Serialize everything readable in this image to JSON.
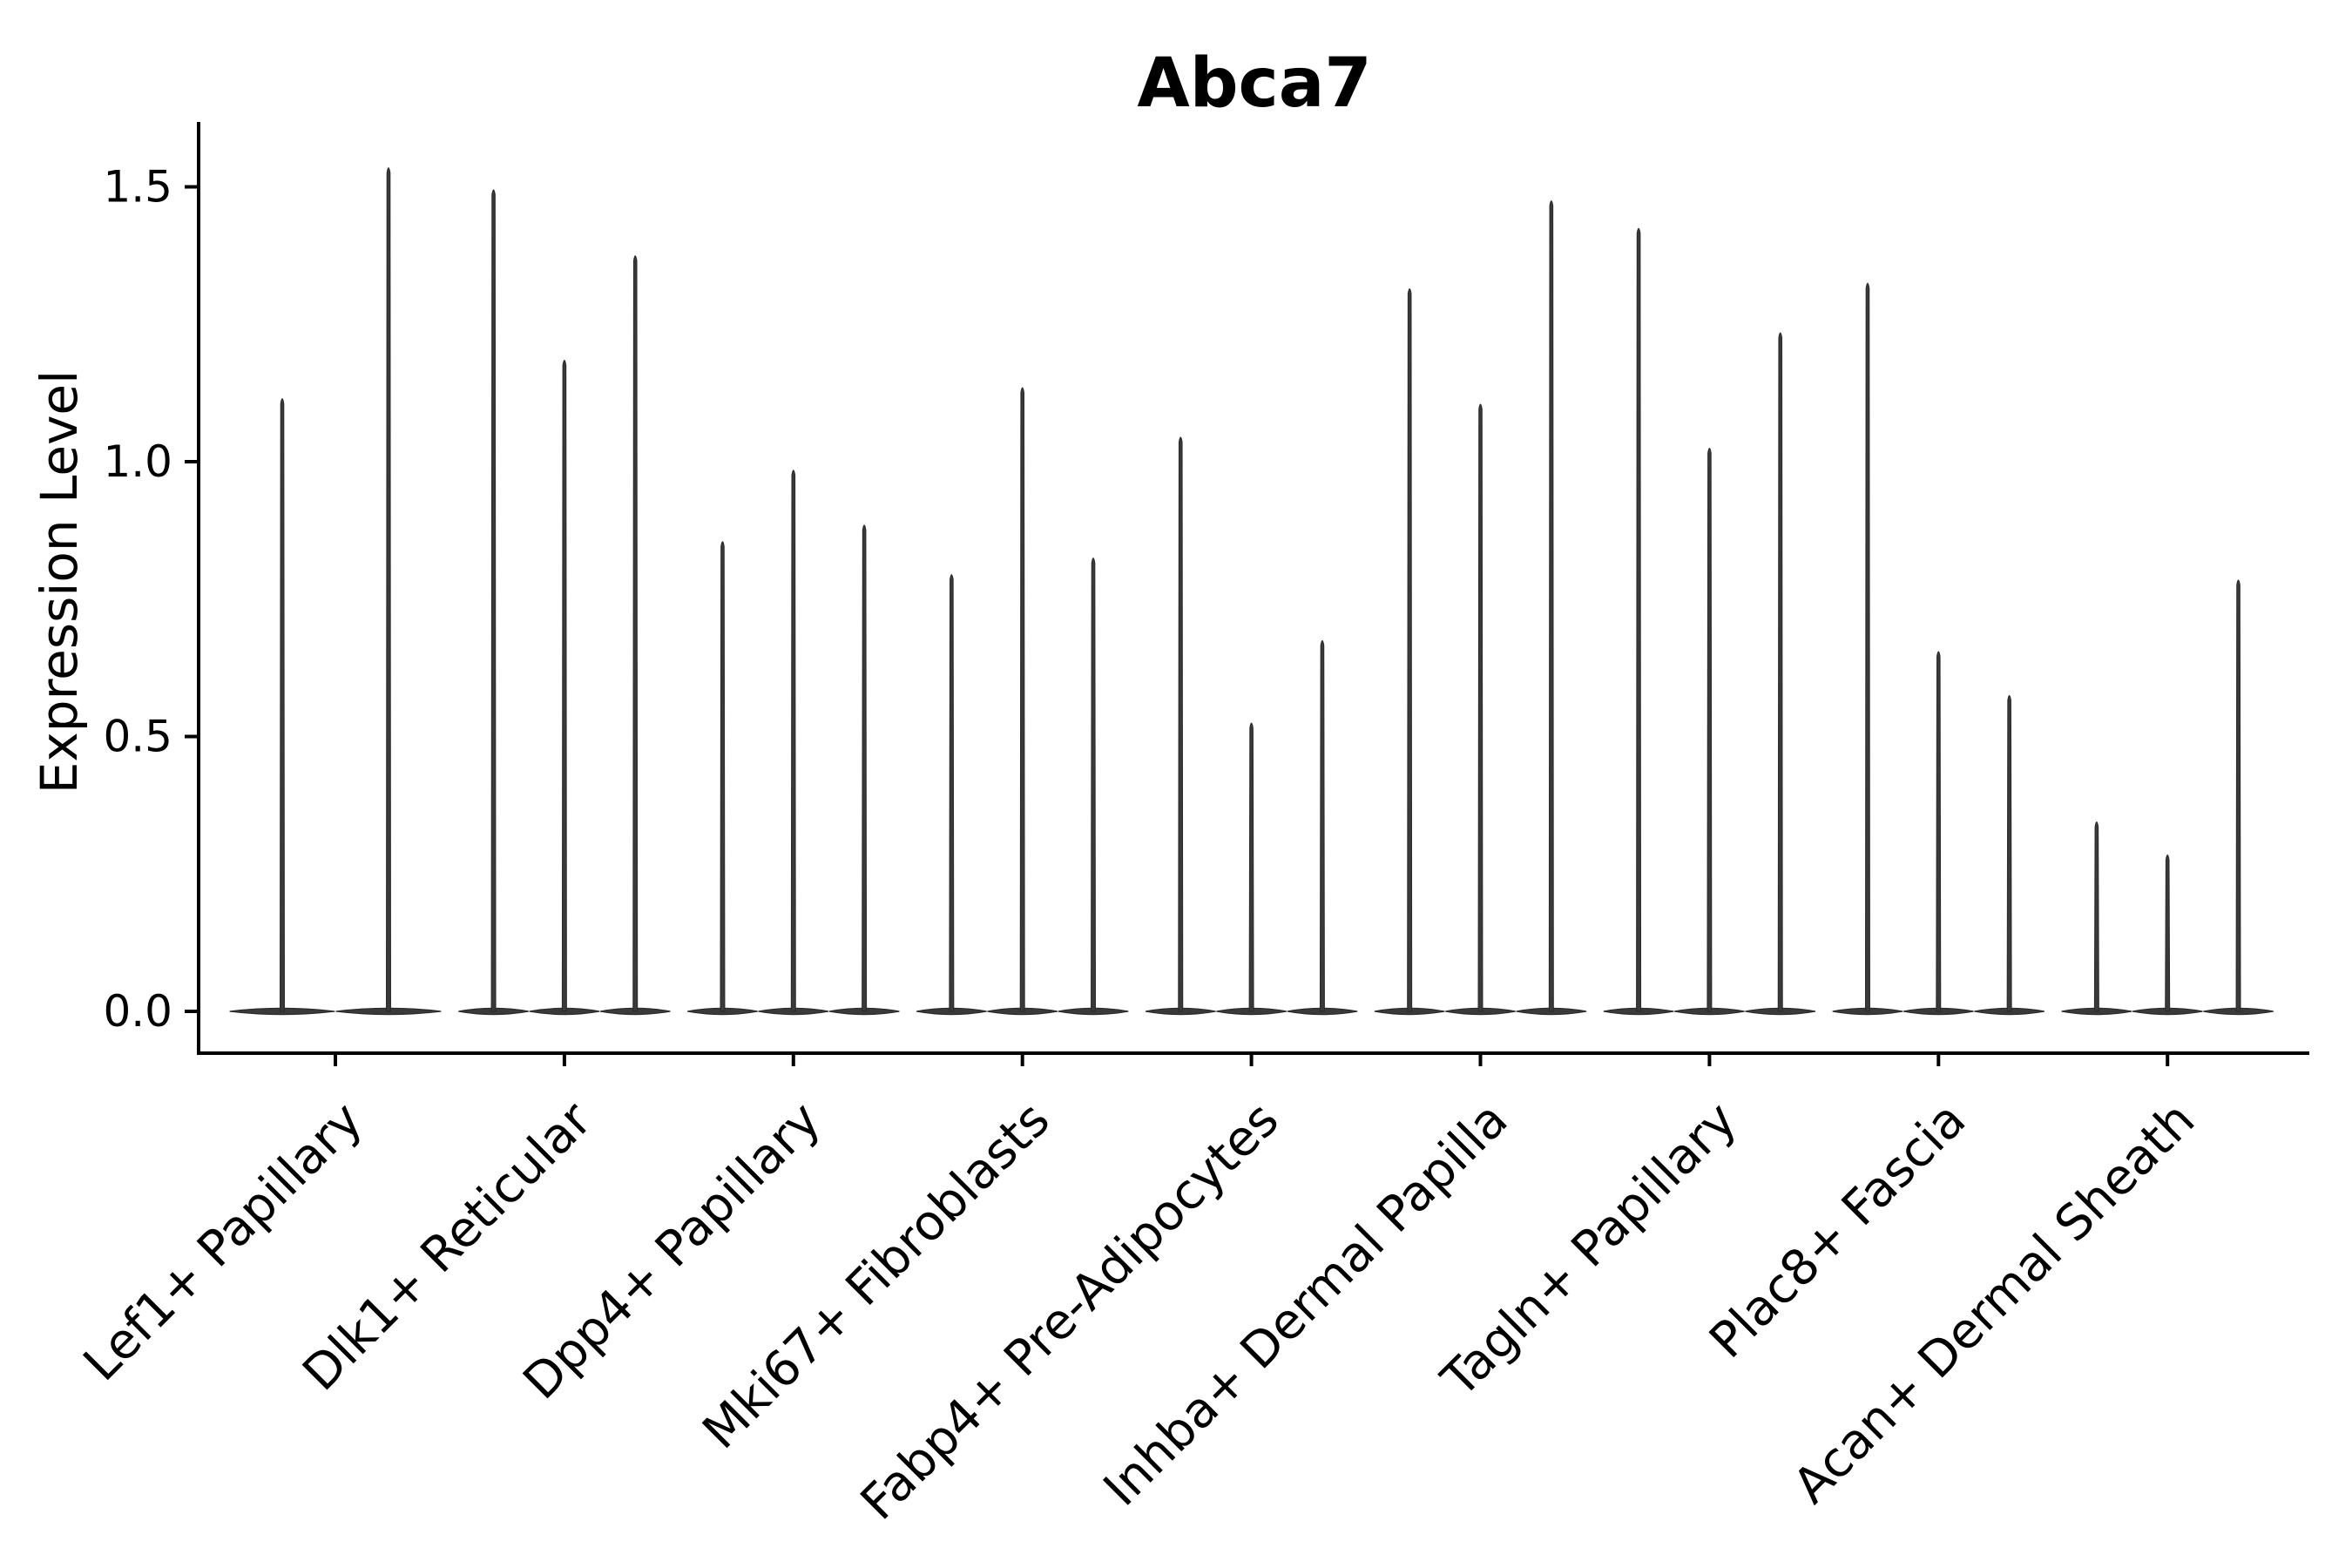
{
  "chart_data": {
    "type": "violin",
    "title": "Abca7",
    "xlabel": "",
    "ylabel": "Expression Level",
    "ylim": [
      -0.05,
      1.62
    ],
    "yticks": [
      0,
      0.5,
      1,
      1.5
    ],
    "ytick_labels": [
      "0.0",
      "0.5",
      "1.0",
      "1.5"
    ],
    "grid": false,
    "legend_position": "none",
    "baseline_value": 0,
    "categories": [
      "Lef1+ Papillary",
      "Dlk1+ Reticular",
      "Dpp4+ Papillary",
      "Mki67+ Fibroblasts",
      "Fabp4+ Pre-Adipocytes",
      "Inhba+ Dermal Papilla",
      "Tagln+ Papillary",
      "Plac8+ Fascia",
      "Acan+ Dermal Sheath"
    ],
    "series": [
      {
        "category": "Lef1+ Papillary",
        "violin_peak_values": [
          1.12,
          1.54
        ]
      },
      {
        "category": "Dlk1+ Reticular",
        "violin_peak_values": [
          1.5,
          1.19,
          1.38
        ]
      },
      {
        "category": "Dpp4+ Papillary",
        "violin_peak_values": [
          0.86,
          0.99,
          0.89
        ]
      },
      {
        "category": "Mki67+ Fibroblasts",
        "violin_peak_values": [
          0.8,
          1.14,
          0.83
        ]
      },
      {
        "category": "Fabp4+ Pre-Adipocytes",
        "violin_peak_values": [
          1.05,
          0.53,
          0.68
        ]
      },
      {
        "category": "Inhba+ Dermal Papilla",
        "violin_peak_values": [
          1.32,
          1.11,
          1.48
        ]
      },
      {
        "category": "Tagln+ Papillary",
        "violin_peak_values": [
          1.43,
          1.03,
          1.24
        ]
      },
      {
        "category": "Plac8+ Fascia",
        "violin_peak_values": [
          1.33,
          0.66,
          0.58
        ]
      },
      {
        "category": "Acan+ Dermal Sheath",
        "violin_peak_values": [
          0.35,
          0.29,
          0.79
        ]
      }
    ],
    "colors": {
      "violin_fill": "#3a3a3a",
      "violin_stroke": "#2c2c2c",
      "axis": "#000000",
      "text": "#000000",
      "background": "#ffffff"
    }
  }
}
